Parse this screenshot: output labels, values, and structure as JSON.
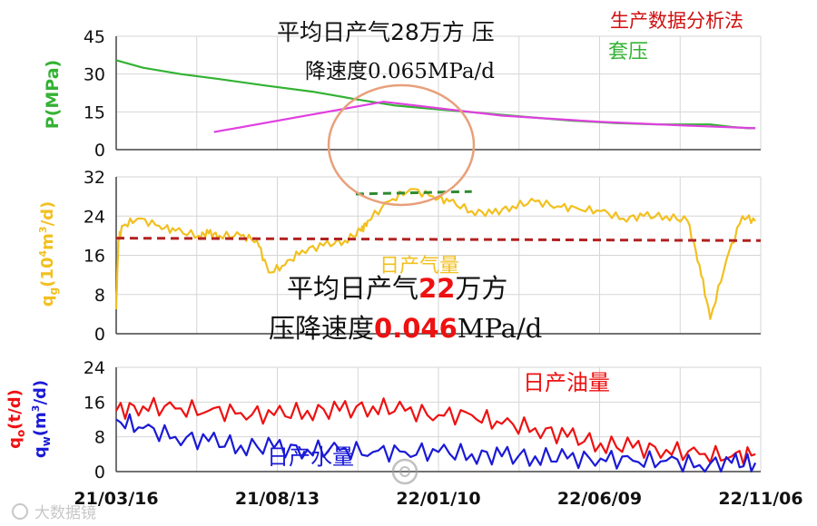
{
  "chart_data": [
    {
      "type": "line",
      "title": "",
      "xlabel": "",
      "ylabel": "P(MPa)",
      "ylim": [
        0,
        45
      ],
      "yticks": [
        "0",
        "15",
        "30",
        "45"
      ],
      "grid": true,
      "x_start": "21/03/16",
      "x_end": "22/11/06",
      "series": [
        {
          "name": "套压",
          "color": "#33b233",
          "x": [
            "21/03/16",
            "21/04/10",
            "21/05/15",
            "21/06/20",
            "21/08/01",
            "21/09/15",
            "21/10/25",
            "21/12/01",
            "22/01/10",
            "22/02/20",
            "22/04/01",
            "22/05/15",
            "22/06/25",
            "22/08/01",
            "22/09/01",
            "22/09/20",
            "22/10/10",
            "22/10/25",
            "22/11/01"
          ],
          "y": [
            35.5,
            32.5,
            30,
            28,
            25.5,
            23,
            20,
            17.5,
            16,
            14.5,
            13,
            11.5,
            10.5,
            10,
            10,
            10,
            9,
            8.5,
            8.5
          ]
        },
        {
          "name": "",
          "color": "#e040e0",
          "x": [
            "21/06/15",
            "21/11/20",
            "22/03/10",
            "22/06/10",
            "22/09/01",
            "22/11/01"
          ],
          "y": [
            7,
            19,
            13.5,
            11,
            9.5,
            8.5
          ]
        }
      ]
    },
    {
      "type": "line",
      "title": "",
      "xlabel": "",
      "ylabel": "qg(10⁴m³/d)",
      "ylim": [
        0,
        32
      ],
      "yticks": [
        "0",
        "8",
        "16",
        "24",
        "32"
      ],
      "grid": true,
      "x_start": "21/03/16",
      "x_end": "22/11/06",
      "series": [
        {
          "name": "日产气量",
          "color": "#f2c01f",
          "x": [
            "21/03/16",
            "21/03/18",
            "21/03/22",
            "21/04/05",
            "21/04/25",
            "21/05/10",
            "21/06/01",
            "21/06/10",
            "21/06/20",
            "21/07/10",
            "21/07/25",
            "21/08/05",
            "21/08/20",
            "21/09/05",
            "21/09/25",
            "21/10/15",
            "21/10/30",
            "21/11/05",
            "21/11/25",
            "21/12/15",
            "22/01/05",
            "22/01/20",
            "22/02/10",
            "22/03/01",
            "22/03/20",
            "22/04/10",
            "22/05/01",
            "22/05/20",
            "22/06/10",
            "22/07/01",
            "22/07/20",
            "22/08/10",
            "22/08/30",
            "22/09/10",
            "22/09/20",
            "22/10/05",
            "22/10/20",
            "22/11/01"
          ],
          "y": [
            5,
            19,
            22,
            23.5,
            22,
            21,
            20,
            20.5,
            20,
            20,
            19,
            12.5,
            14,
            17,
            18,
            19,
            21,
            23,
            27,
            29.5,
            28,
            27,
            25,
            24.5,
            26,
            27,
            26,
            25.5,
            25,
            23.5,
            24,
            24,
            23,
            14,
            3,
            15,
            24,
            23
          ]
        },
        {
          "name": "",
          "color": "#2e8b2e",
          "dash": true,
          "x": [
            "21/10/25",
            "22/02/10"
          ],
          "y": [
            28.5,
            29
          ]
        },
        {
          "name": "",
          "color": "#b22222",
          "dash": true,
          "x": [
            "21/03/16",
            "22/11/06"
          ],
          "y": [
            19.5,
            19
          ]
        }
      ]
    },
    {
      "type": "line",
      "title": "",
      "xlabel": "",
      "ylabel": "qo(t/d) qw(m³/d)",
      "ylim": [
        0,
        24
      ],
      "yticks": [
        "0",
        "8",
        "16",
        "24"
      ],
      "xticks": [
        "21/03/16",
        "21/08/13",
        "22/01/10",
        "22/06/09",
        "22/11/06"
      ],
      "grid": true,
      "series": [
        {
          "name": "日产油量",
          "color": "#ee1111",
          "x": [
            "21/03/16",
            "21/04/10",
            "21/05/10",
            "21/06/10",
            "21/07/10",
            "21/08/10",
            "21/09/10",
            "21/10/10",
            "21/11/10",
            "21/12/10",
            "22/01/10",
            "22/02/10",
            "22/03/10",
            "22/04/10",
            "22/05/10",
            "22/06/10",
            "22/07/10",
            "22/08/10",
            "22/09/10",
            "22/10/10",
            "22/11/01"
          ],
          "y": [
            14,
            15,
            14.5,
            14,
            13.5,
            13,
            14,
            14,
            15,
            14,
            13,
            13,
            11,
            10,
            8,
            6.5,
            5.5,
            5,
            4,
            3.5,
            4
          ]
        },
        {
          "name": "日产水量",
          "color": "#1a1ad6",
          "x": [
            "21/03/16",
            "21/04/10",
            "21/05/10",
            "21/06/10",
            "21/07/10",
            "21/08/10",
            "21/09/10",
            "21/10/10",
            "21/11/10",
            "21/12/10",
            "22/01/10",
            "22/02/10",
            "22/03/10",
            "22/04/10",
            "22/05/10",
            "22/06/10",
            "22/07/10",
            "22/08/10",
            "22/09/10",
            "22/10/10",
            "22/11/01"
          ],
          "y": [
            12,
            10,
            8,
            7,
            6,
            5.5,
            5,
            5,
            4.5,
            4.5,
            4.5,
            4,
            3.5,
            3.5,
            3,
            3,
            2.5,
            2.5,
            1.5,
            2,
            2
          ]
        }
      ]
    }
  ],
  "annotations": {
    "corner_title": "生产数据分析法",
    "top_line1": "平均日产气28万方  压",
    "top_line2": "降速度0.065MPa/d",
    "mid_line1_pre": "平均日产气",
    "mid_line1_num": "22",
    "mid_line1_post": "万方",
    "mid_line2_pre": "压降速度",
    "mid_line2_num": "0.046",
    "mid_line2_post": "MPa/d",
    "watermark": "大数据镜"
  },
  "colors": {
    "green": "#33b233",
    "magenta": "#e040e0",
    "yellow": "#f2c01f",
    "red": "#ee1111",
    "blue": "#1a1ad6",
    "darkred": "#b22222",
    "circle": "#e8a07a"
  }
}
